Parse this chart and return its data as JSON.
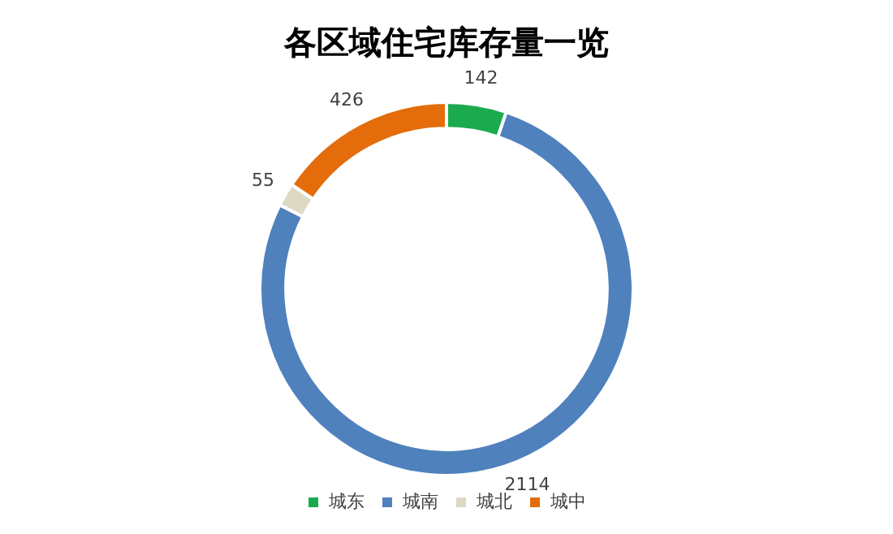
{
  "chart_data": {
    "type": "donut",
    "title": "各区域住宅库存量一览",
    "categories": [
      "城东",
      "城南",
      "城北",
      "城中"
    ],
    "values": [
      142,
      2114,
      55,
      426
    ],
    "colors": [
      "#1bab4e",
      "#4f81bd",
      "#ddd9c3",
      "#e46c0a"
    ],
    "data_labels": true,
    "legend": "bottom"
  }
}
